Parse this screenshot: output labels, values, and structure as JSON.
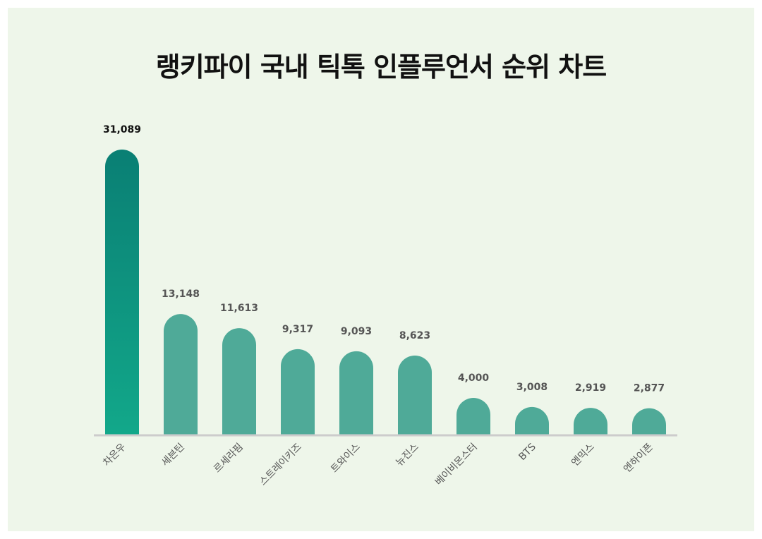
{
  "chart_data": {
    "type": "bar",
    "title": "랭키파이 국내 틱톡 인플루언서 순위 차트",
    "categories": [
      "차은우",
      "세븐틴",
      "르세라핌",
      "스트레이키즈",
      "트와이스",
      "뉴진스",
      "베이비몬스터",
      "BTS",
      "엔믹스",
      "엔하이픈"
    ],
    "values": [
      31089,
      13148,
      11613,
      9317,
      9093,
      8623,
      4000,
      3008,
      2919,
      2877
    ],
    "value_labels": [
      "31,089",
      "13,148",
      "11,613",
      "9,317",
      "9,093",
      "8,623",
      "4,000",
      "3,008",
      "2,919",
      "2,877"
    ],
    "xlabel": "",
    "ylabel": "",
    "ylim": [
      0,
      31089
    ],
    "grid": false,
    "legend": "none",
    "colors": {
      "top_bar_gradient": [
        "#0a7f74",
        "#12a88a"
      ],
      "bar": "#4faa98",
      "baseline": "#cccccc",
      "background": "#eef6ea"
    }
  }
}
